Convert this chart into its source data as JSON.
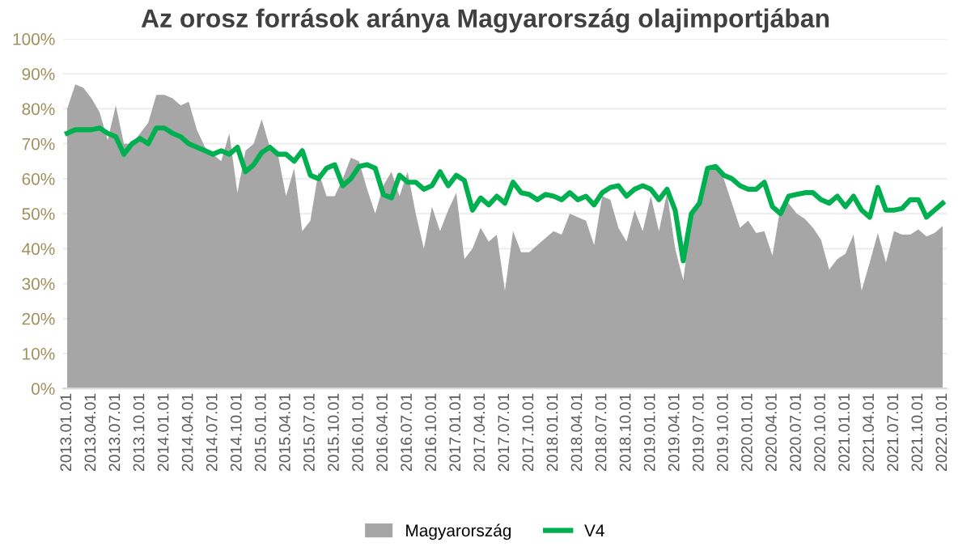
{
  "chart_data": {
    "type": "area",
    "title": "Az orosz források aránya Magyarország olajimportjában",
    "categories": [
      "2013.01.01",
      null,
      null,
      "2013.04.01",
      null,
      null,
      "2013.07.01",
      null,
      null,
      "2013.10.01",
      null,
      null,
      "2014.01.01",
      null,
      null,
      "2014.04.01",
      null,
      null,
      "2014.07.01",
      null,
      null,
      "2014.10.01",
      null,
      null,
      "2015.01.01",
      null,
      null,
      "2015.04.01",
      null,
      null,
      "2015.07.01",
      null,
      null,
      "2015.10.01",
      null,
      null,
      "2016.01.01",
      null,
      null,
      "2016.04.01",
      null,
      null,
      "2016.07.01",
      null,
      null,
      "2016.10.01",
      null,
      null,
      "2017.01.01",
      null,
      null,
      "2017.04.01",
      null,
      null,
      "2017.07.01",
      null,
      null,
      "2017.10.01",
      null,
      null,
      "2018.01.01",
      null,
      null,
      "2018.04.01",
      null,
      null,
      "2018.07.01",
      null,
      null,
      "2018.10.01",
      null,
      null,
      "2019.01.01",
      null,
      null,
      "2019.04.01",
      null,
      null,
      "2019.07.01",
      null,
      null,
      "2019.10.01",
      null,
      null,
      "2020.01.01",
      null,
      null,
      "2020.04.01",
      null,
      null,
      "2020.07.01",
      null,
      null,
      "2020.10.01",
      null,
      null,
      "2021.01.01",
      null,
      null,
      "2021.04.01",
      null,
      null,
      "2021.07.01",
      null,
      null,
      "2021.10.01",
      null,
      null,
      "2022.01.01"
    ],
    "series": [
      {
        "name": "Magyarország",
        "color": "#a6a6a6",
        "values": [
          80,
          87,
          86,
          83,
          79,
          71,
          81,
          70,
          70,
          73,
          76,
          84,
          84,
          83,
          81,
          82,
          74,
          69,
          67,
          65,
          73,
          56,
          68,
          70,
          77,
          69,
          67,
          55,
          63,
          45,
          48,
          62,
          55,
          55,
          60,
          66,
          65,
          57,
          50,
          58,
          62,
          55,
          62,
          50,
          40,
          52,
          45,
          51,
          56,
          37,
          40,
          46,
          42,
          44,
          28,
          45,
          39,
          39,
          41,
          43,
          45,
          44,
          50,
          49,
          48,
          41,
          55,
          54,
          46,
          42,
          51,
          45,
          55,
          45,
          56,
          40,
          31,
          49,
          52,
          63.5,
          63.5,
          60,
          53,
          46,
          48,
          44.5,
          45,
          38,
          52,
          53,
          50,
          48.5,
          46,
          42.5,
          34,
          37,
          38.5,
          44,
          28,
          36,
          44.5,
          36,
          45,
          44,
          44,
          45.5,
          43.5,
          44.5,
          46.5
        ]
      },
      {
        "name": "V4",
        "type": "line",
        "color": "#00b050",
        "values": [
          73,
          74,
          74,
          74,
          74.5,
          73,
          72,
          67,
          70,
          71.5,
          70,
          74.5,
          74.5,
          73,
          72,
          70,
          69,
          68,
          67,
          68,
          67,
          69,
          62,
          64,
          67.5,
          69,
          67,
          67,
          65,
          68,
          61,
          60,
          63,
          64,
          58,
          60,
          63.5,
          64,
          63,
          55.5,
          54.5,
          61,
          59,
          59,
          57,
          58,
          62,
          58,
          61,
          59.5,
          51,
          54.5,
          52.5,
          55,
          53,
          59,
          56,
          55.5,
          54,
          55.5,
          55,
          54,
          56,
          54,
          55,
          52.5,
          56,
          57.5,
          58,
          55,
          57,
          58,
          57,
          54,
          57,
          51,
          36.5,
          50,
          53,
          63,
          63.5,
          61,
          60,
          58,
          57,
          57,
          59,
          52,
          50,
          55,
          55.5,
          56,
          56,
          54,
          53,
          55,
          52,
          55,
          51,
          49,
          57.5,
          51,
          51,
          51.5,
          54,
          54,
          49,
          51,
          53
        ]
      }
    ],
    "ylim": [
      0,
      100
    ],
    "yticks": [
      {
        "value": 0,
        "label": "0%"
      },
      {
        "value": 10,
        "label": "10%"
      },
      {
        "value": 20,
        "label": "20%"
      },
      {
        "value": 30,
        "label": "30%"
      },
      {
        "value": 40,
        "label": "40%"
      },
      {
        "value": 50,
        "label": "50%"
      },
      {
        "value": 60,
        "label": "60%"
      },
      {
        "value": 70,
        "label": "70%"
      },
      {
        "value": 80,
        "label": "80%"
      },
      {
        "value": 90,
        "label": "90%"
      },
      {
        "value": 100,
        "label": "100%"
      }
    ],
    "grid": "y",
    "legend": "bottom"
  }
}
